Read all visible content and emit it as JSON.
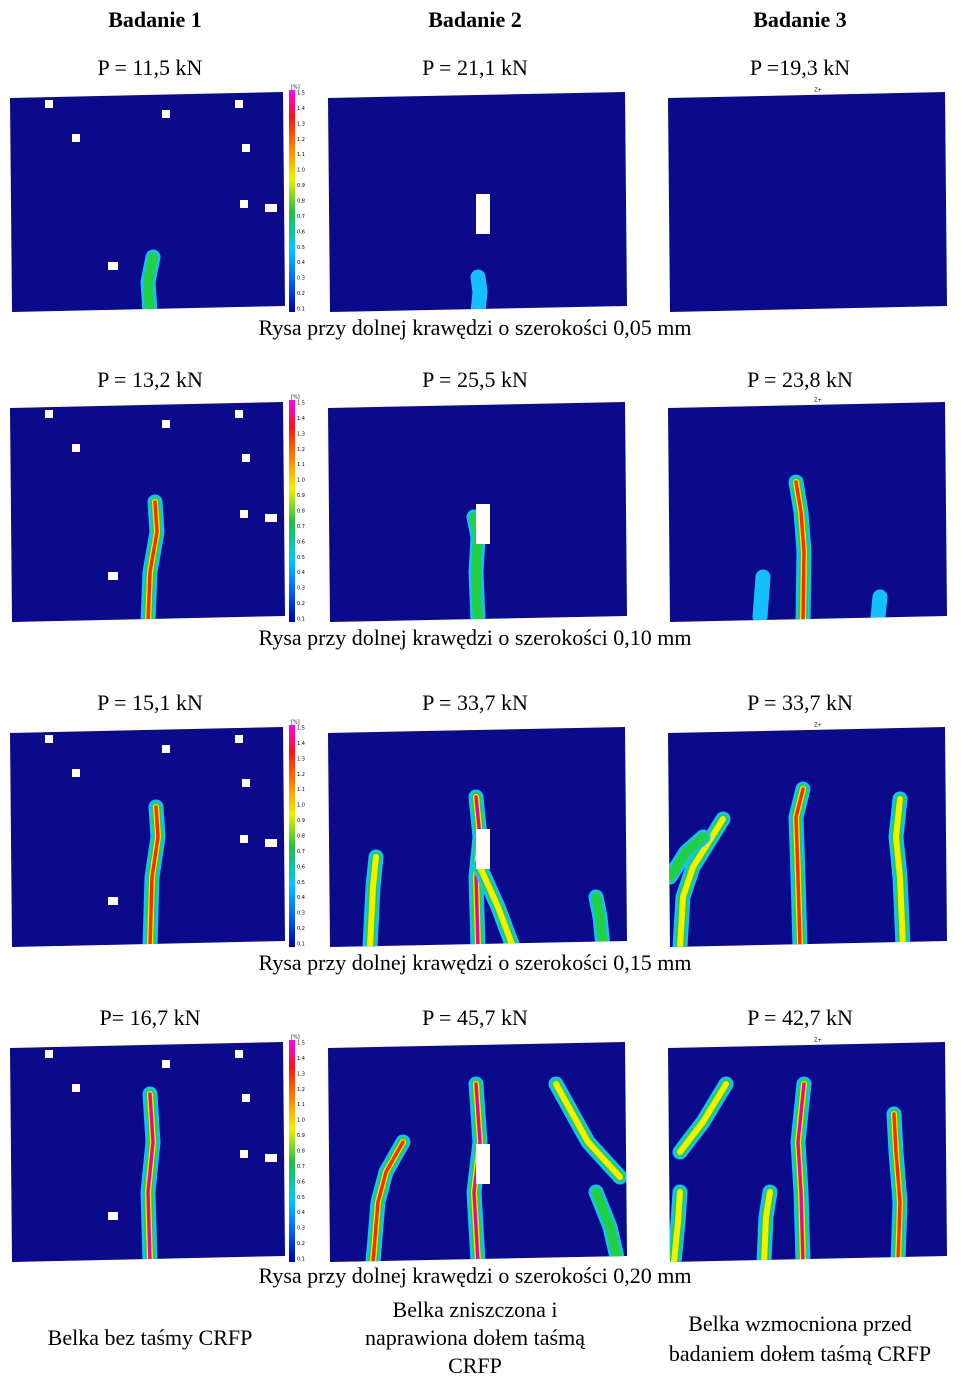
{
  "headers": [
    "Badanie 1",
    "Badanie 2",
    "Badanie 3"
  ],
  "rows": [
    {
      "loads": [
        "P = 11,5 kN",
        "P = 21,1 kN",
        "P =19,3 kN"
      ],
      "caption": "Rysa przy dolnej krawędzi o szerokości 0,05 mm"
    },
    {
      "loads": [
        "P = 13,2 kN",
        "P = 25,5 kN",
        "P = 23,8 kN"
      ],
      "caption": "Rysa przy dolnej krawędzi o szerokości 0,10 mm"
    },
    {
      "loads": [
        "P = 15,1 kN",
        "P = 33,7 kN",
        "P = 33,7 kN"
      ],
      "caption": "Rysa przy dolnej krawędzi o szerokości 0,15 mm"
    },
    {
      "loads": [
        "P= 16,7 kN",
        "P = 45,7 kN",
        "P = 42,7 kN"
      ],
      "caption": "Rysa przy dolnej krawędzi o szerokości 0,20 mm"
    }
  ],
  "colorbar": {
    "unit": "[%]",
    "ticks": [
      "1.5",
      "1.4",
      "1.3",
      "1.2",
      "1.1",
      "1.0",
      "0.9",
      "0.8",
      "0.7",
      "0.6",
      "0.5",
      "0.4",
      "0.3",
      "0.2",
      "0.1"
    ]
  },
  "axis_marker": "Z+",
  "descriptions": [
    [
      "Belka bez taśmy CRFP"
    ],
    [
      "Belka zniszczona i",
      "naprawiona dołem taśmą",
      "CRFP"
    ],
    [
      "Belka wzmocniona przed",
      "badaniem dołem taśmą CRFP"
    ]
  ]
}
